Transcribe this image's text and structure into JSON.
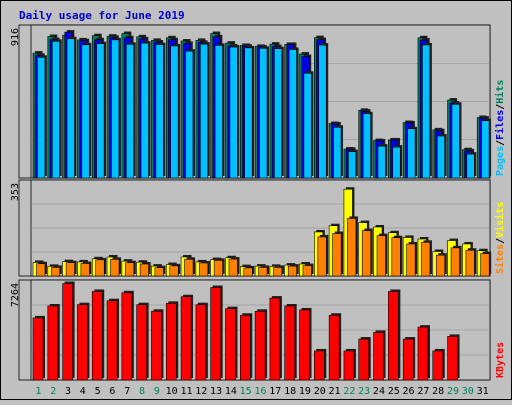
{
  "chart_data": {
    "type": "bar",
    "title": "Daily usage for June 2019",
    "days": [
      "1",
      "2",
      "3",
      "4",
      "5",
      "6",
      "7",
      "8",
      "9",
      "10",
      "11",
      "12",
      "13",
      "14",
      "15",
      "16",
      "17",
      "18",
      "19",
      "20",
      "21",
      "22",
      "23",
      "24",
      "25",
      "26",
      "27",
      "28",
      "29",
      "30",
      "31"
    ],
    "weekend_days": [
      "1",
      "2",
      "8",
      "9",
      "15",
      "16",
      "22",
      "23",
      "29",
      "30"
    ],
    "panels": [
      {
        "id": "hits",
        "max_label": "916",
        "ymax": 916,
        "legend": [
          "Pages",
          "/",
          "Files",
          "/",
          "Hits"
        ],
        "series": [
          {
            "name": "Hits",
            "values": [
              768,
              870,
              878,
              849,
              875,
              872,
              888,
              868,
              846,
              862,
              842,
              846,
              888,
              829,
              815,
              809,
              823,
              821,
              762,
              863,
              335,
              178,
              416,
              230,
              234,
              341,
              862,
              296,
              479,
              174,
              372
            ]
          },
          {
            "name": "Files",
            "values": [
              754,
              851,
              897,
              844,
              850,
              865,
              862,
              855,
              836,
              850,
              828,
              834,
              868,
              812,
              810,
              806,
              808,
              821,
              747,
              851,
              332,
              176,
              411,
              228,
              234,
              339,
              848,
              291,
              461,
              167,
              368
            ]
          },
          {
            "name": "Pages",
            "values": [
              742,
              840,
              856,
              819,
              826,
              849,
              822,
              829,
              820,
              812,
              780,
              823,
              815,
              805,
              800,
              797,
              795,
              790,
              644,
              817,
              312,
              162,
              395,
              196,
              190,
              303,
              818,
              258,
              453,
              147,
              352
            ]
          }
        ]
      },
      {
        "id": "visits",
        "max_label": "353",
        "ymax": 353,
        "legend": [
          "Sites",
          "/",
          "Visits"
        ],
        "series": [
          {
            "name": "Visits",
            "values": [
              52,
              37,
              55,
              54,
              66,
              73,
              57,
              53,
              38,
              44,
              73,
              54,
              63,
              70,
              36,
              38,
              37,
              42,
              46,
              169,
              193,
              333,
              205,
              188,
              166,
              148,
              142,
              94,
              136,
              123,
              97
            ]
          },
          {
            "name": "Sites",
            "values": [
              47,
              33,
              51,
              48,
              62,
              64,
              51,
              46,
              32,
              39,
              64,
              50,
              60,
              65,
              31,
              33,
              33,
              38,
              40,
              150,
              163,
              221,
              174,
              155,
              147,
              123,
              129,
              80,
              108,
              99,
              86
            ]
          }
        ]
      },
      {
        "id": "kbytes",
        "max_label": "7264",
        "ymax": 7264,
        "legend": [
          "KBytes"
        ],
        "series": [
          {
            "name": "KBytes",
            "values": [
              4700,
              5600,
              7300,
              5700,
              6700,
              6000,
              6600,
              5700,
              5200,
              5800,
              6300,
              5700,
              7000,
              5400,
              4900,
              5200,
              6200,
              5600,
              5300,
              2200,
              4900,
              2200,
              3100,
              3600,
              6700,
              3100,
              4000,
              2200,
              3300,
              0,
              0
            ]
          }
        ]
      }
    ]
  },
  "colors": {
    "title": "#0000cc",
    "hits": "#00805c",
    "files": "#0000e6",
    "pages": "#00c0ff",
    "visits": "#ffff00",
    "sites": "#ff8000",
    "kbytes": "#ff0000",
    "weekend_label": "#00805c",
    "weekday_label": "#000000"
  }
}
